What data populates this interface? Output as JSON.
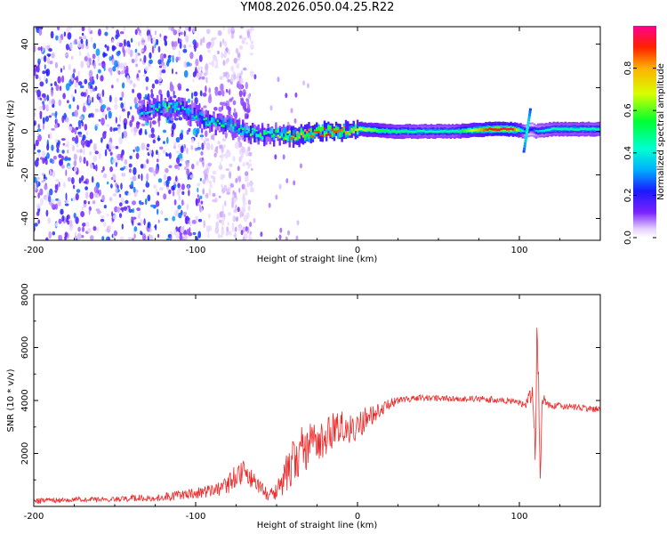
{
  "title": "YM08.2026.050.04.25.R22",
  "chart_data": [
    {
      "type": "heatmap",
      "xlabel": "Height of straight line (km)",
      "ylabel": "Frequency (Hz)",
      "xlim": [
        -200,
        150
      ],
      "ylim": [
        -50,
        48
      ],
      "xticks": [
        -200,
        -100,
        0,
        100
      ],
      "xtick_labels": [
        "-200",
        "-100",
        "0",
        "100"
      ],
      "yticks": [
        -40,
        -20,
        0,
        20,
        40
      ],
      "ytick_labels": [
        "-40",
        "-20",
        "0",
        "20",
        "40"
      ],
      "colorbar": {
        "label": "Normalized spectral amplitude",
        "range": [
          0,
          1
        ],
        "ticks": [
          0.0,
          0.2,
          0.4,
          0.6,
          0.8
        ],
        "tick_labels": [
          "0.0",
          "0.2",
          "0.4",
          "0.6",
          "0.8"
        ],
        "colormap": "rainbow"
      },
      "ridge": {
        "description": "dominant frequency ridge vs height",
        "height_km": [
          -135,
          -120,
          -110,
          -100,
          -90,
          -80,
          -70,
          -60,
          -50,
          -40,
          -30,
          -20,
          -10,
          0,
          20,
          40,
          60,
          80,
          95,
          103,
          107,
          110,
          120,
          140,
          150
        ],
        "frequency_hz": [
          9,
          11,
          11,
          7,
          4,
          3,
          0,
          -2,
          -1,
          -2,
          -1,
          0,
          0,
          1,
          0,
          0,
          0,
          1,
          1,
          0,
          1,
          0,
          1,
          1,
          1
        ],
        "amplitude": [
          0.4,
          0.55,
          0.5,
          0.45,
          0.5,
          0.45,
          0.5,
          0.55,
          0.6,
          0.75,
          0.85,
          0.9,
          0.85,
          0.7,
          0.5,
          0.45,
          0.45,
          0.9,
          0.95,
          0.3,
          0.2,
          0.35,
          0.45,
          0.45,
          0.45
        ]
      },
      "noise_region_km": [
        -200,
        -95
      ]
    },
    {
      "type": "line",
      "xlabel": "Height of straight line (km)",
      "ylabel": "SNR (10 * v/v)",
      "xlim": [
        -200,
        150
      ],
      "ylim": [
        0,
        8000
      ],
      "xticks": [
        -200,
        -100,
        0,
        100
      ],
      "xtick_labels": [
        "-200",
        "-100",
        "0",
        "100"
      ],
      "yticks": [
        2000,
        4000,
        6000,
        8000
      ],
      "ytick_labels": [
        "2000",
        "4000",
        "6000",
        "8000"
      ],
      "series": [
        {
          "name": "SNR",
          "color": "#ee2b2b",
          "x": [
            -200,
            -180,
            -160,
            -140,
            -120,
            -100,
            -90,
            -80,
            -75,
            -70,
            -65,
            -60,
            -55,
            -50,
            -45,
            -40,
            -35,
            -30,
            -25,
            -20,
            -15,
            -10,
            -5,
            0,
            5,
            10,
            15,
            20,
            30,
            40,
            50,
            60,
            70,
            80,
            90,
            100,
            104,
            108,
            110,
            111,
            112,
            113,
            114,
            118,
            125,
            135,
            150
          ],
          "y": [
            200,
            250,
            250,
            300,
            350,
            500,
            600,
            800,
            1200,
            1300,
            1000,
            700,
            400,
            600,
            1200,
            1700,
            2100,
            2300,
            2400,
            2600,
            2900,
            3000,
            2900,
            3000,
            3300,
            3500,
            3700,
            3900,
            4050,
            4100,
            4100,
            4050,
            4050,
            4050,
            4000,
            3950,
            3800,
            4500,
            1500,
            7000,
            3800,
            800,
            4000,
            3800,
            3800,
            3750,
            3650
          ],
          "noise_amplitude": [
            100,
            100,
            100,
            120,
            150,
            200,
            250,
            350,
            450,
            450,
            400,
            300,
            200,
            400,
            700,
            900,
            900,
            850,
            800,
            700,
            650,
            600,
            550,
            500,
            450,
            350,
            250,
            200,
            120,
            120,
            120,
            120,
            120,
            120,
            120,
            120,
            200,
            500,
            600,
            1000,
            800,
            500,
            400,
            120,
            120,
            120,
            120
          ]
        }
      ]
    }
  ]
}
